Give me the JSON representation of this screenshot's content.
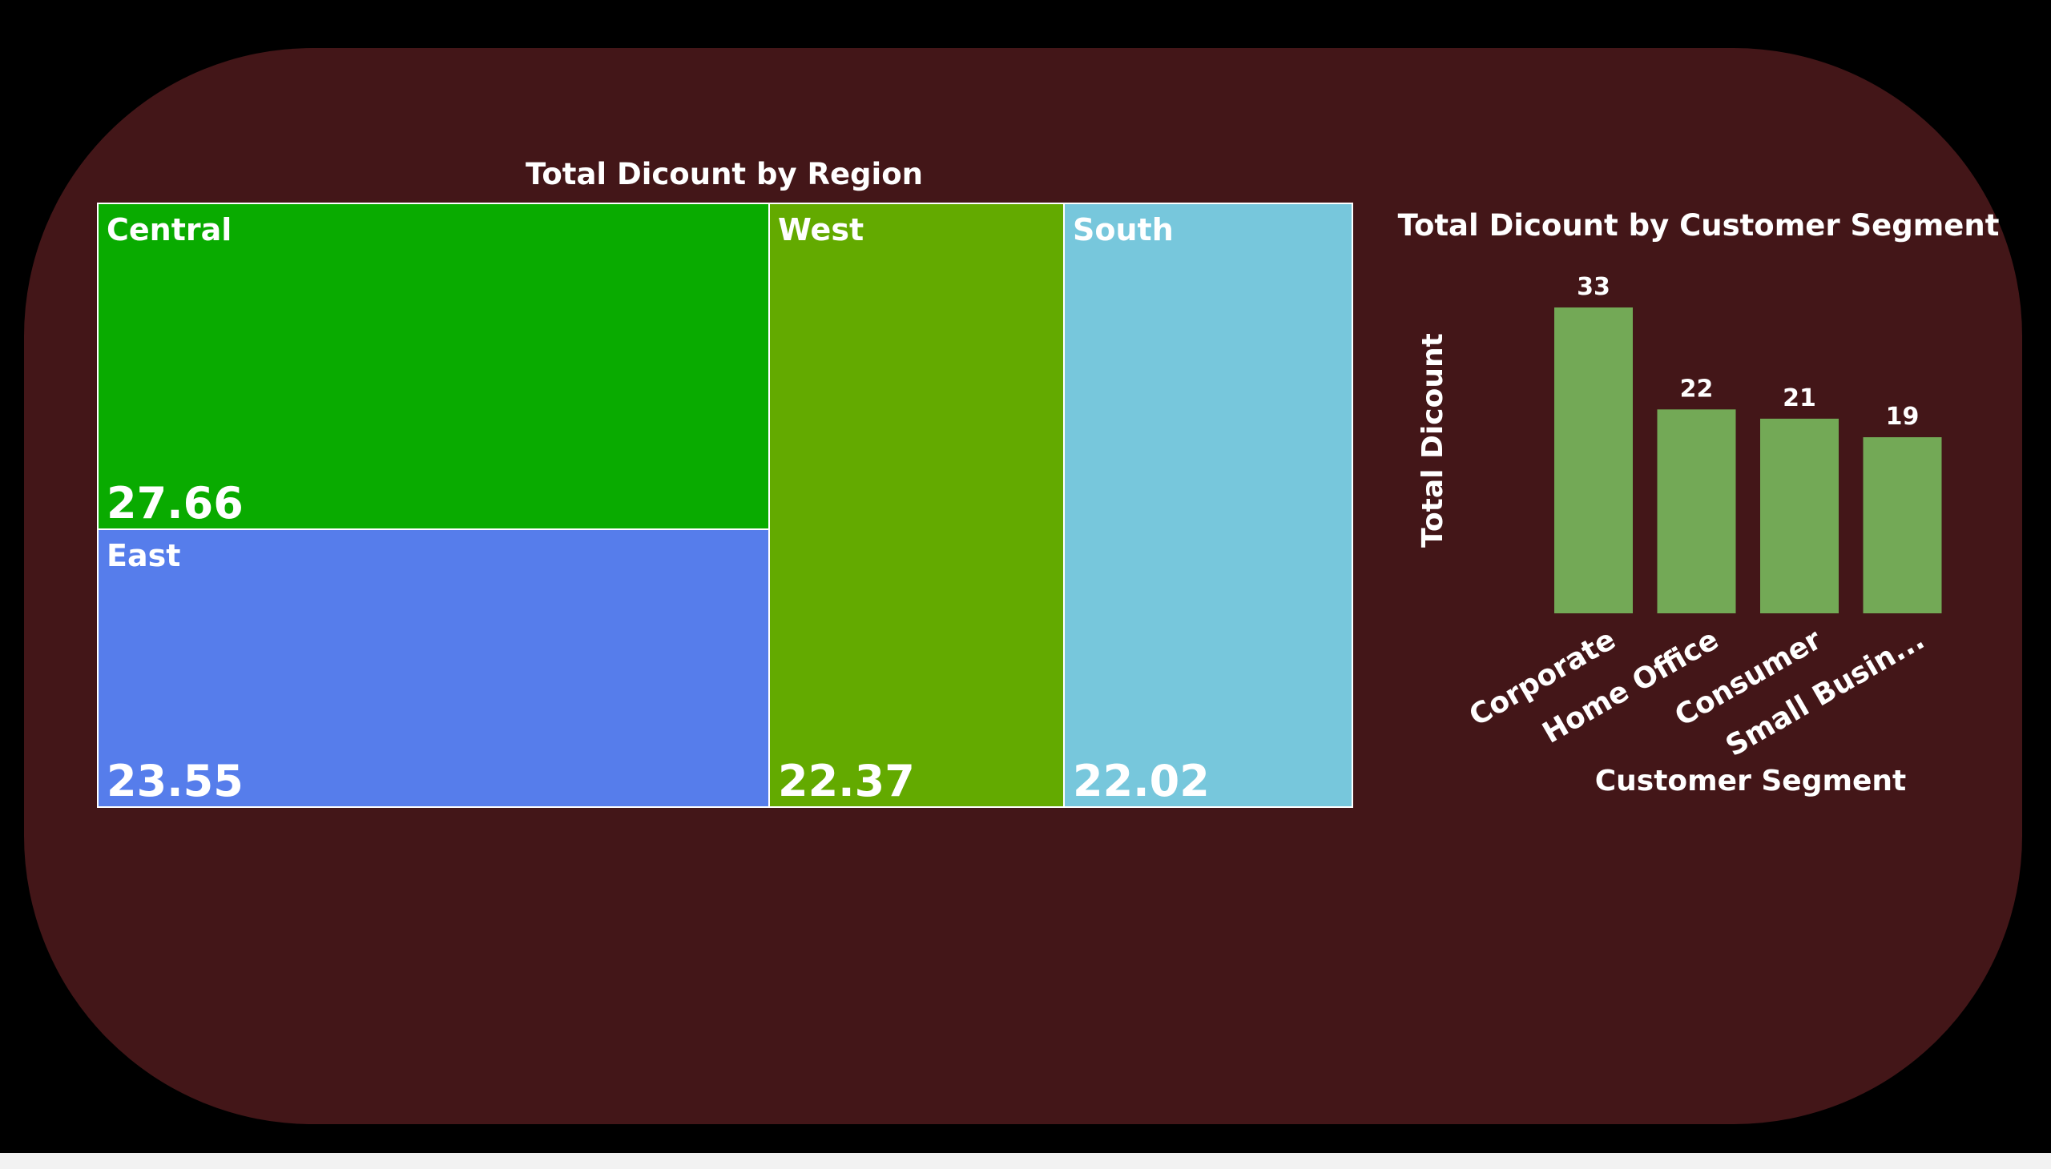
{
  "chart_data": [
    {
      "type": "treemap",
      "title": "Total Dicount by Region",
      "items": [
        {
          "name": "Central",
          "value": 27.66,
          "color": "#09ab00"
        },
        {
          "name": "East",
          "value": 23.55,
          "color": "#567deb"
        },
        {
          "name": "West",
          "value": 22.37,
          "color": "#63aa00"
        },
        {
          "name": "South",
          "value": 22.02,
          "color": "#77c7dc"
        }
      ]
    },
    {
      "type": "bar",
      "title": "Total Dicount by Customer Segment",
      "categories": [
        "Corporate",
        "Home Office",
        "Consumer",
        "Small Busin..."
      ],
      "values": [
        33,
        22,
        21,
        19
      ],
      "data_labels": [
        "33",
        "22",
        "21",
        "19"
      ],
      "xlabel": "Customer Segment",
      "ylabel": "Total Dicount",
      "ylim": [
        0,
        33
      ],
      "bar_color": "#73a956",
      "grid": false
    }
  ]
}
